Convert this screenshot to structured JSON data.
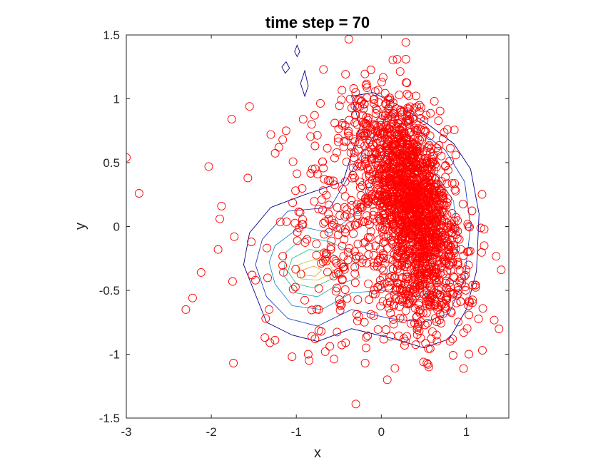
{
  "chart_data": {
    "type": "scatter",
    "title": "time step = 70",
    "xlabel": "x",
    "ylabel": "y",
    "xlim": [
      -3,
      1.5
    ],
    "ylim": [
      -1.5,
      1.5
    ],
    "xticks": [
      -3,
      -2,
      -1,
      0,
      1
    ],
    "yticks": [
      -1.5,
      -1,
      -0.5,
      0,
      0.5,
      1,
      1.5
    ],
    "xtick_labels": [
      "-3",
      "-2",
      "-1",
      "0",
      "1"
    ],
    "ytick_labels": [
      "-1.5",
      "-1",
      "-0.5",
      "0",
      "0.5",
      "1",
      "1.5"
    ],
    "grid": false,
    "legend": "none",
    "marker_color": "#ff0000",
    "marker": "circle",
    "contour_colors": [
      "#00008b",
      "#1f3fbf",
      "#1f8fd0",
      "#23b5b0",
      "#37c27a",
      "#c8c83c",
      "#e0a030"
    ],
    "isolated_points": [
      [
        -3.0,
        0.54
      ],
      [
        -2.85,
        0.26
      ],
      [
        -2.3,
        -0.65
      ],
      [
        -2.22,
        -0.56
      ],
      [
        -2.12,
        -0.36
      ],
      [
        -2.03,
        0.47
      ],
      [
        -1.88,
        0.16
      ],
      [
        -1.9,
        0.06
      ],
      [
        -1.92,
        -0.18
      ],
      [
        -1.76,
        0.84
      ],
      [
        -1.73,
        -0.08
      ],
      [
        -1.75,
        -0.43
      ],
      [
        -1.74,
        -1.07
      ],
      [
        -1.55,
        0.94
      ],
      [
        -1.57,
        0.38
      ],
      [
        -1.53,
        -0.12
      ],
      [
        -1.52,
        -0.38
      ],
      [
        -1.48,
        -0.42
      ],
      [
        -1.3,
        0.72
      ],
      [
        -1.16,
        0.68
      ],
      [
        -1.12,
        0.75
      ],
      [
        -0.92,
        0.84
      ],
      [
        -0.82,
        0.8
      ],
      [
        -0.68,
        1.23
      ],
      [
        -1.05,
        -1.02
      ],
      [
        -1.32,
        -0.65
      ],
      [
        -1.36,
        -0.72
      ],
      [
        -1.25,
        -0.89
      ],
      [
        -1.31,
        -0.91
      ],
      [
        -1.37,
        -0.87
      ],
      [
        -0.86,
        -1.0
      ],
      [
        -0.85,
        -1.05
      ],
      [
        -0.66,
        -0.98
      ],
      [
        -0.78,
        -0.88
      ],
      [
        -0.3,
        -1.39
      ],
      [
        -0.19,
        -1.07
      ],
      [
        0.07,
        -1.2
      ],
      [
        0.55,
        -1.08
      ],
      [
        0.56,
        -1.1
      ],
      [
        1.03,
        -1.0
      ],
      [
        -0.42,
        -0.91
      ],
      [
        -0.18,
        -0.95
      ],
      [
        0.11,
        -0.86
      ],
      [
        0.3,
        -0.86
      ],
      [
        0.65,
        -0.85
      ]
    ],
    "clusters": [
      {
        "name": "",
        "cx": 0.38,
        "cy": 0.18,
        "sx": 0.26,
        "sy": 0.38,
        "rho": -0.45,
        "n": 1500
      },
      {
        "name": "",
        "cx": -0.35,
        "cy": -0.15,
        "sx": 0.42,
        "sy": 0.38,
        "rho": 0.0,
        "n": 260
      },
      {
        "name": "",
        "cx": 0.5,
        "cy": -0.55,
        "sx": 0.35,
        "sy": 0.2,
        "rho": 0.0,
        "n": 140
      },
      {
        "name": "",
        "cx": -0.15,
        "cy": 0.75,
        "sx": 0.3,
        "sy": 0.18,
        "rho": 0.0,
        "n": 120
      }
    ],
    "density_peak": {
      "x": -0.85,
      "y": -0.37
    },
    "contour_rings": [
      {
        "level": 1,
        "points": [
          [
            -1.55,
            -0.05
          ],
          [
            -1.3,
            0.15
          ],
          [
            -0.9,
            0.25
          ],
          [
            -0.45,
            0.35
          ],
          [
            -0.25,
            0.78
          ],
          [
            -0.35,
            1.02
          ],
          [
            -0.1,
            1.05
          ],
          [
            0.2,
            0.95
          ],
          [
            0.55,
            0.8
          ],
          [
            0.85,
            0.65
          ],
          [
            1.05,
            0.45
          ],
          [
            1.15,
            0.1
          ],
          [
            1.12,
            -0.35
          ],
          [
            1.0,
            -0.65
          ],
          [
            0.8,
            -0.88
          ],
          [
            0.5,
            -0.95
          ],
          [
            0.15,
            -0.88
          ],
          [
            -0.35,
            -0.8
          ],
          [
            -0.75,
            -0.9
          ],
          [
            -1.05,
            -0.85
          ],
          [
            -1.35,
            -0.75
          ],
          [
            -1.5,
            -0.5
          ],
          [
            -1.62,
            -0.3
          ]
        ]
      },
      {
        "level": 2,
        "points": [
          [
            -1.4,
            -0.1
          ],
          [
            -1.1,
            0.12
          ],
          [
            -0.6,
            0.15
          ],
          [
            -0.2,
            0.6
          ],
          [
            0.1,
            0.9
          ],
          [
            0.45,
            0.75
          ],
          [
            0.75,
            0.6
          ],
          [
            0.98,
            0.35
          ],
          [
            1.05,
            0.0
          ],
          [
            0.98,
            -0.4
          ],
          [
            0.8,
            -0.68
          ],
          [
            0.5,
            -0.75
          ],
          [
            0.1,
            -0.72
          ],
          [
            -0.35,
            -0.65
          ],
          [
            -0.75,
            -0.78
          ],
          [
            -1.1,
            -0.72
          ],
          [
            -1.35,
            -0.55
          ],
          [
            -1.48,
            -0.3
          ]
        ]
      },
      {
        "level": 3,
        "points": [
          [
            -1.25,
            -0.15
          ],
          [
            -0.95,
            0.0
          ],
          [
            -0.6,
            -0.05
          ],
          [
            -0.3,
            0.1
          ],
          [
            0.05,
            0.55
          ],
          [
            0.3,
            0.62
          ],
          [
            0.6,
            0.45
          ],
          [
            0.85,
            0.2
          ],
          [
            0.9,
            -0.15
          ],
          [
            0.75,
            -0.5
          ],
          [
            0.4,
            -0.55
          ],
          [
            0.0,
            -0.5
          ],
          [
            -0.35,
            -0.52
          ],
          [
            -0.7,
            -0.65
          ],
          [
            -1.05,
            -0.62
          ],
          [
            -1.25,
            -0.45
          ],
          [
            -1.32,
            -0.28
          ]
        ]
      },
      {
        "level": 4,
        "points": [
          [
            -1.12,
            -0.2
          ],
          [
            -0.9,
            -0.08
          ],
          [
            -0.6,
            -0.12
          ],
          [
            -0.35,
            -0.2
          ],
          [
            -0.25,
            -0.4
          ],
          [
            -0.5,
            -0.45
          ],
          [
            -0.75,
            -0.55
          ],
          [
            -1.0,
            -0.52
          ],
          [
            -1.15,
            -0.38
          ]
        ]
      },
      {
        "level": 5,
        "points": [
          [
            -1.05,
            -0.25
          ],
          [
            -0.85,
            -0.18
          ],
          [
            -0.6,
            -0.2
          ],
          [
            -0.42,
            -0.3
          ],
          [
            -0.55,
            -0.4
          ],
          [
            -0.8,
            -0.48
          ],
          [
            -1.0,
            -0.45
          ],
          [
            -1.1,
            -0.35
          ]
        ]
      },
      {
        "level": 6,
        "points": [
          [
            -0.98,
            -0.3
          ],
          [
            -0.8,
            -0.26
          ],
          [
            -0.62,
            -0.28
          ],
          [
            -0.56,
            -0.36
          ],
          [
            -0.75,
            -0.42
          ],
          [
            -0.95,
            -0.41
          ]
        ]
      },
      {
        "level": 7,
        "points": [
          [
            -0.92,
            -0.34
          ],
          [
            -0.8,
            -0.31
          ],
          [
            -0.7,
            -0.34
          ],
          [
            -0.78,
            -0.39
          ],
          [
            -0.9,
            -0.38
          ]
        ]
      },
      {
        "level": 1,
        "points": [
          [
            -1.17,
            1.25
          ],
          [
            -1.12,
            1.29
          ],
          [
            -1.08,
            1.24
          ],
          [
            -1.13,
            1.2
          ]
        ]
      },
      {
        "level": 1,
        "points": [
          [
            -1.02,
            1.37
          ],
          [
            -0.99,
            1.42
          ],
          [
            -0.96,
            1.37
          ],
          [
            -0.99,
            1.33
          ]
        ]
      },
      {
        "level": 1,
        "points": [
          [
            -0.95,
            1.12
          ],
          [
            -0.9,
            1.22
          ],
          [
            -0.86,
            1.1
          ],
          [
            -0.9,
            1.02
          ]
        ]
      }
    ]
  }
}
